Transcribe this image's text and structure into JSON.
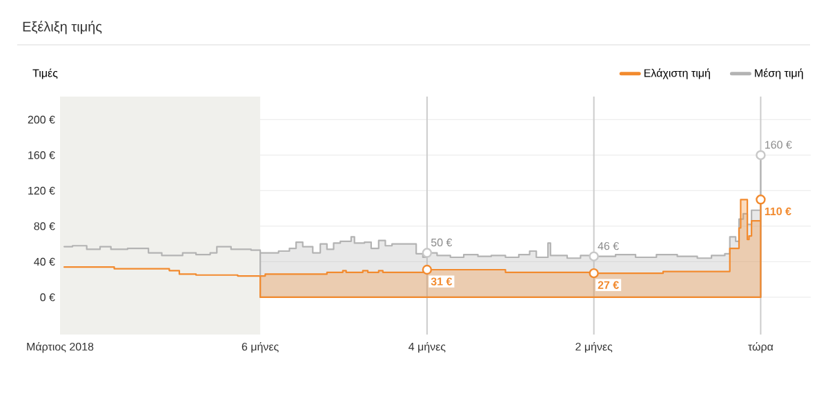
{
  "chart_data": {
    "type": "step",
    "title": "Εξέλιξη τιμής",
    "ylabel": "Τιμές",
    "xlim": [
      -8.4,
      0.6
    ],
    "ylim": [
      -42,
      226
    ],
    "xticks": [
      {
        "value": -8.4,
        "label": "Μάρτιος 2018"
      },
      {
        "value": -6,
        "label": "6 μήνες"
      },
      {
        "value": -4,
        "label": "4 μήνες"
      },
      {
        "value": -2,
        "label": "2 μήνες"
      },
      {
        "value": 0,
        "label": "τώρα"
      }
    ],
    "yticks": [
      {
        "value": 0,
        "label": "0 €"
      },
      {
        "value": 40,
        "label": "40 €"
      },
      {
        "value": 80,
        "label": "80 €"
      },
      {
        "value": 120,
        "label": "120 €"
      },
      {
        "value": 160,
        "label": "160 €"
      },
      {
        "value": 200,
        "label": "200 €"
      }
    ],
    "grid": "y",
    "legend": "top right",
    "bands": [
      {
        "axis": "x",
        "from": -8.4,
        "to": -6,
        "color": "#f0f0ec"
      }
    ],
    "ref_lines": [
      {
        "axis": "x",
        "value": -4,
        "color": "#cccccc"
      },
      {
        "axis": "x",
        "value": -2,
        "color": "#cccccc"
      },
      {
        "axis": "x",
        "value": 0,
        "color": "#cccccc"
      }
    ],
    "series": [
      {
        "name": "Ελάχιστη τιμή",
        "type": "area",
        "color": "#f28a2e",
        "x": [
          -6.0,
          -5.94,
          -5.2,
          -5.01,
          -4.97,
          -4.77,
          -4.71,
          -4.58,
          -4.53,
          -4.0,
          -3.06,
          -2.0,
          -1.17,
          -0.37,
          -0.26,
          -0.24,
          -0.16,
          -0.14,
          -0.11,
          0
        ],
        "values": [
          24,
          26,
          28,
          30,
          28,
          30,
          28,
          30,
          28,
          31,
          28,
          27,
          29,
          55,
          78,
          110,
          65,
          69,
          86,
          110
        ]
      },
      {
        "name": "Μέση τιμή",
        "type": "area",
        "color": "#b3b3b3",
        "x": [
          -6.0,
          -5.78,
          -5.65,
          -5.57,
          -5.49,
          -5.37,
          -5.28,
          -5.2,
          -5.12,
          -5.04,
          -4.91,
          -4.87,
          -4.75,
          -4.67,
          -4.58,
          -4.5,
          -4.42,
          -4.21,
          -4.13,
          -4.05,
          -4.0,
          -3.88,
          -3.72,
          -3.56,
          -3.39,
          -3.23,
          -3.06,
          -2.9,
          -2.77,
          -2.69,
          -2.55,
          -2.52,
          -2.32,
          -2.16,
          -2.0,
          -1.74,
          -1.5,
          -1.25,
          -1.0,
          -0.76,
          -0.59,
          -0.43,
          -0.37,
          -0.3,
          -0.26,
          -0.21,
          -0.16,
          -0.11,
          -0.04,
          0
        ],
        "values": [
          50,
          52,
          55,
          62,
          57,
          50,
          60,
          54,
          61,
          63,
          68,
          61,
          62,
          55,
          64,
          58,
          60,
          60,
          49,
          45,
          50,
          47,
          45,
          48,
          46,
          47,
          45,
          48,
          52,
          45,
          61,
          47,
          44,
          47,
          46,
          48,
          45,
          48,
          46,
          44,
          47,
          49,
          68,
          63,
          88,
          94,
          82,
          98,
          98,
          160
        ]
      },
      {
        "type": "step",
        "color": "#f28a2e",
        "x": [
          -8.35,
          -7.75,
          -7.09,
          -6.97,
          -6.77,
          -6.27,
          -6.0
        ],
        "values": [
          34,
          32,
          30,
          26,
          25,
          24,
          24
        ]
      },
      {
        "type": "step",
        "color": "#b3b3b3",
        "x": [
          -8.35,
          -8.25,
          -8.08,
          -7.92,
          -7.79,
          -7.59,
          -7.34,
          -7.18,
          -6.93,
          -6.77,
          -6.6,
          -6.52,
          -6.35,
          -6.11,
          -6.0
        ],
        "values": [
          57,
          58,
          54,
          57,
          54,
          55,
          50,
          47,
          50,
          48,
          50,
          57,
          54,
          53,
          50
        ]
      },
      {
        "type": "scatter",
        "color": "#f28a2e",
        "marker": "circle",
        "x": [
          -4,
          -2,
          0
        ],
        "values": [
          31,
          27,
          110
        ]
      },
      {
        "type": "scatter",
        "color": "#c8c8c8",
        "marker": "circle",
        "x": [
          -4,
          -2,
          0
        ],
        "values": [
          50,
          46,
          160
        ]
      }
    ],
    "annotations": [
      {
        "text": "31 €",
        "x": -4,
        "y": 31
      },
      {
        "text": "50 €",
        "x": -4,
        "y": 50
      },
      {
        "text": "27 €",
        "x": -2,
        "y": 27
      },
      {
        "text": "46 €",
        "x": -2,
        "y": 46
      },
      {
        "text": "110 €",
        "x": 0,
        "y": 110
      },
      {
        "text": "160 €",
        "x": 0,
        "y": 160
      }
    ]
  }
}
